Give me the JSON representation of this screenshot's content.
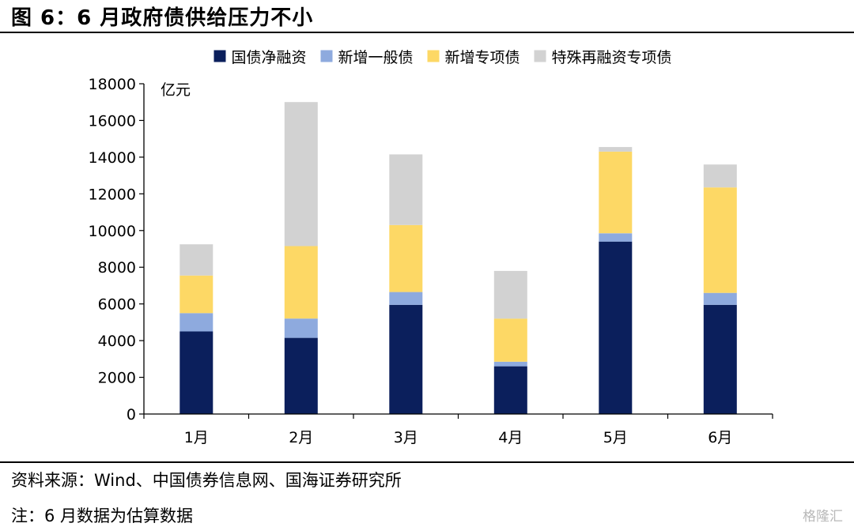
{
  "figure": {
    "title": "图 6：6 月政府债供给压力不小",
    "source": "资料来源：Wind、中国债券信息网、国海证券研究所",
    "note": "注：6 月数据为估算数据",
    "watermark": "格隆汇"
  },
  "chart_data": {
    "type": "bar",
    "stacked": true,
    "categories": [
      "1月",
      "2月",
      "3月",
      "4月",
      "5月",
      "6月"
    ],
    "ylabel": "亿元",
    "xlabel": "",
    "ylim": [
      0,
      18000
    ],
    "yticks": [
      0,
      2000,
      4000,
      6000,
      8000,
      10000,
      12000,
      14000,
      16000,
      18000
    ],
    "grid": false,
    "legend": "top",
    "series": [
      {
        "name": "国债净融资",
        "color": "#0b1f5c",
        "values": [
          4500,
          4150,
          5950,
          2600,
          9400,
          5950
        ]
      },
      {
        "name": "新增一般债",
        "color": "#8eaade",
        "values": [
          1000,
          1050,
          700,
          250,
          450,
          650
        ]
      },
      {
        "name": "新增专项债",
        "color": "#fdd865",
        "values": [
          2050,
          3950,
          3650,
          2350,
          4450,
          5750
        ]
      },
      {
        "name": "特殊再融资专项债",
        "color": "#d2d2d2",
        "values": [
          1700,
          7850,
          3850,
          2600,
          250,
          1250
        ]
      }
    ]
  }
}
